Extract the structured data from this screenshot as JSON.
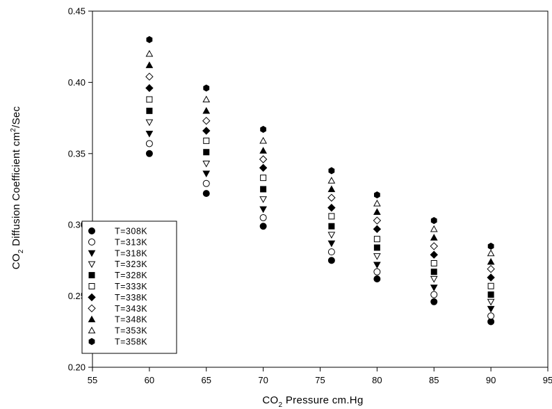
{
  "chart_data": {
    "type": "scatter",
    "title": "",
    "xlabel": {
      "prefix": "CO",
      "subscript": "2",
      "suffix": " Pressure  cm.Hg"
    },
    "ylabel": {
      "prefix": "CO",
      "subscript": "2",
      "middle": " Diffusion Coefficient  cm",
      "superscript": "2",
      "suffix": "/Sec"
    },
    "xlim": [
      55,
      95
    ],
    "ylim": [
      0.2,
      0.45
    ],
    "xticks": [
      55,
      60,
      65,
      70,
      75,
      80,
      85,
      90,
      95
    ],
    "xtick_labels": [
      "55",
      "60",
      "65",
      "70",
      "75",
      "80",
      "85",
      "90",
      "95"
    ],
    "yticks": [
      0.2,
      0.25,
      0.3,
      0.35,
      0.4,
      0.45
    ],
    "ytick_labels": [
      "0.20",
      "0.25",
      "0.30",
      "0.35",
      "0.40",
      "0.45"
    ],
    "grid": false,
    "legend_position": "bottom-left",
    "x": [
      60,
      65,
      70,
      76,
      80,
      85,
      90
    ],
    "series": [
      {
        "name": "T=308K",
        "marker": "circle-filled",
        "y": [
          0.35,
          0.322,
          0.299,
          0.275,
          0.262,
          0.246,
          0.232
        ]
      },
      {
        "name": "T=313K",
        "marker": "circle-open",
        "y": [
          0.357,
          0.329,
          0.305,
          0.281,
          0.267,
          0.251,
          0.236
        ]
      },
      {
        "name": "T=318K",
        "marker": "triangle-down-filled",
        "y": [
          0.364,
          0.336,
          0.311,
          0.287,
          0.272,
          0.256,
          0.241
        ]
      },
      {
        "name": "T=323K",
        "marker": "triangle-down-open",
        "y": [
          0.372,
          0.343,
          0.318,
          0.293,
          0.278,
          0.262,
          0.246
        ]
      },
      {
        "name": "T=328K",
        "marker": "square-filled",
        "y": [
          0.38,
          0.351,
          0.325,
          0.299,
          0.284,
          0.267,
          0.251
        ]
      },
      {
        "name": "T=333K",
        "marker": "square-open",
        "y": [
          0.388,
          0.359,
          0.333,
          0.306,
          0.29,
          0.273,
          0.257
        ]
      },
      {
        "name": "T=338K",
        "marker": "diamond-filled",
        "y": [
          0.396,
          0.366,
          0.34,
          0.312,
          0.297,
          0.279,
          0.263
        ]
      },
      {
        "name": "T=343K",
        "marker": "diamond-open",
        "y": [
          0.404,
          0.373,
          0.346,
          0.319,
          0.303,
          0.285,
          0.269
        ]
      },
      {
        "name": "T=348K",
        "marker": "triangle-up-filled",
        "y": [
          0.412,
          0.38,
          0.352,
          0.325,
          0.309,
          0.291,
          0.274
        ]
      },
      {
        "name": "T=353K",
        "marker": "triangle-up-open",
        "y": [
          0.42,
          0.388,
          0.359,
          0.331,
          0.315,
          0.297,
          0.28
        ]
      },
      {
        "name": "T=358K",
        "marker": "hexagon-filled",
        "y": [
          0.43,
          0.396,
          0.367,
          0.338,
          0.321,
          0.303,
          0.285
        ]
      }
    ]
  }
}
